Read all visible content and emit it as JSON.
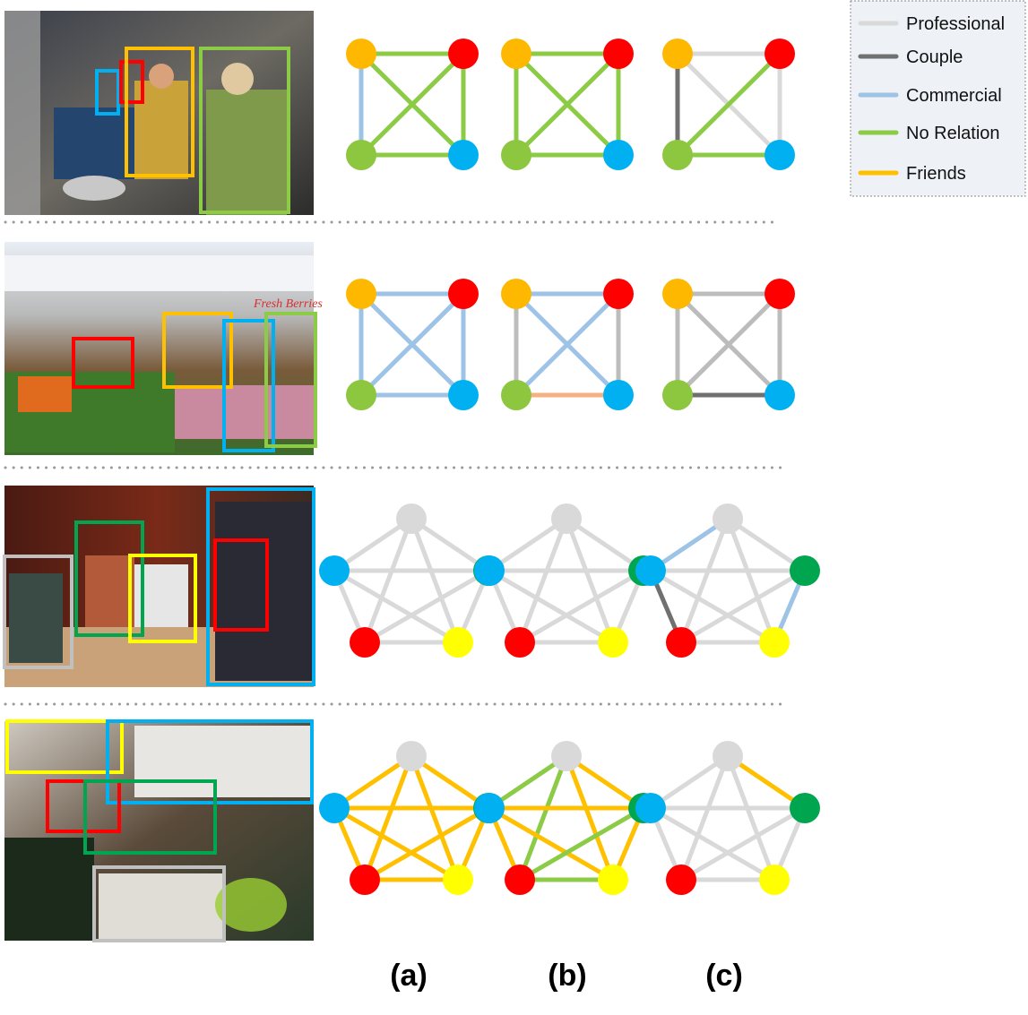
{
  "colors": {
    "professional": "#d9d9d9",
    "couple": "#707070",
    "commercial": "#9dc3e6",
    "no_relation": "#8ccb46",
    "friends": "#ffc000",
    "salmon": "#f4b183",
    "gray_mid": "#bcbcbc",
    "node_orange": "#ffb800",
    "node_red": "#ff0000",
    "node_lightgreen": "#8dc63f",
    "node_blue": "#00b0f0",
    "node_gray": "#d9d9d9",
    "node_green": "#00a64f",
    "node_yellow": "#ffff00"
  },
  "legend": {
    "items": [
      {
        "label": "Professional",
        "color": "#d9d9d9"
      },
      {
        "label": "Couple",
        "color": "#707070"
      },
      {
        "label": "Commercial",
        "color": "#9dc3e6"
      },
      {
        "label": "No Relation",
        "color": "#8ccb46"
      },
      {
        "label": "Friends",
        "color": "#ffc000"
      }
    ]
  },
  "column_labels": [
    "(a)",
    "(b)",
    "(c)"
  ],
  "photos": [
    {
      "name": "row1",
      "text": ""
    },
    {
      "name": "row2",
      "text": "Fresh Berries"
    },
    {
      "name": "row3",
      "text": ""
    },
    {
      "name": "row4",
      "text": ""
    }
  ],
  "rows": [
    {
      "nodes": [
        "orange",
        "red",
        "lightgreen",
        "blue"
      ],
      "graphs": [
        [
          [
            "tl",
            "tr",
            "no_relation"
          ],
          [
            "tl",
            "bl",
            "commercial"
          ],
          [
            "tl",
            "br",
            "no_relation"
          ],
          [
            "tr",
            "bl",
            "no_relation"
          ],
          [
            "tr",
            "br",
            "no_relation"
          ],
          [
            "bl",
            "br",
            "no_relation"
          ]
        ],
        [
          [
            "tl",
            "tr",
            "no_relation"
          ],
          [
            "tl",
            "bl",
            "no_relation"
          ],
          [
            "tl",
            "br",
            "no_relation"
          ],
          [
            "tr",
            "bl",
            "no_relation"
          ],
          [
            "tr",
            "br",
            "no_relation"
          ],
          [
            "bl",
            "br",
            "no_relation"
          ]
        ],
        [
          [
            "tl",
            "tr",
            "professional"
          ],
          [
            "tl",
            "bl",
            "couple"
          ],
          [
            "tl",
            "br",
            "professional"
          ],
          [
            "tr",
            "bl",
            "no_relation"
          ],
          [
            "tr",
            "br",
            "professional"
          ],
          [
            "bl",
            "br",
            "no_relation"
          ]
        ]
      ]
    },
    {
      "nodes": [
        "orange",
        "red",
        "lightgreen",
        "blue"
      ],
      "graphs": [
        [
          [
            "tl",
            "tr",
            "commercial"
          ],
          [
            "tl",
            "bl",
            "commercial"
          ],
          [
            "tl",
            "br",
            "commercial"
          ],
          [
            "tr",
            "bl",
            "commercial"
          ],
          [
            "tr",
            "br",
            "commercial"
          ],
          [
            "bl",
            "br",
            "commercial"
          ]
        ],
        [
          [
            "tl",
            "tr",
            "commercial"
          ],
          [
            "tl",
            "bl",
            "gray_mid"
          ],
          [
            "tl",
            "br",
            "commercial"
          ],
          [
            "tr",
            "bl",
            "commercial"
          ],
          [
            "tr",
            "br",
            "gray_mid"
          ],
          [
            "bl",
            "br",
            "salmon"
          ]
        ],
        [
          [
            "tl",
            "tr",
            "gray_mid"
          ],
          [
            "tl",
            "bl",
            "gray_mid"
          ],
          [
            "tl",
            "br",
            "gray_mid"
          ],
          [
            "tr",
            "bl",
            "gray_mid"
          ],
          [
            "tr",
            "br",
            "gray_mid"
          ],
          [
            "bl",
            "br",
            "couple"
          ]
        ]
      ]
    },
    {
      "nodes": [
        "gray",
        "blue",
        "green",
        "red",
        "yellow"
      ],
      "graphs": [
        [
          [
            "t",
            "l",
            "professional"
          ],
          [
            "t",
            "r",
            "professional"
          ],
          [
            "t",
            "bl",
            "professional"
          ],
          [
            "t",
            "br",
            "professional"
          ],
          [
            "l",
            "r",
            "professional"
          ],
          [
            "l",
            "bl",
            "professional"
          ],
          [
            "l",
            "br",
            "professional"
          ],
          [
            "r",
            "bl",
            "professional"
          ],
          [
            "r",
            "br",
            "professional"
          ],
          [
            "bl",
            "br",
            "professional"
          ]
        ],
        [
          [
            "t",
            "l",
            "professional"
          ],
          [
            "t",
            "r",
            "professional"
          ],
          [
            "t",
            "bl",
            "professional"
          ],
          [
            "t",
            "br",
            "professional"
          ],
          [
            "l",
            "r",
            "professional"
          ],
          [
            "l",
            "bl",
            "professional"
          ],
          [
            "l",
            "br",
            "professional"
          ],
          [
            "r",
            "bl",
            "professional"
          ],
          [
            "r",
            "br",
            "professional"
          ],
          [
            "bl",
            "br",
            "professional"
          ]
        ],
        [
          [
            "t",
            "l",
            "commercial"
          ],
          [
            "t",
            "r",
            "professional"
          ],
          [
            "t",
            "bl",
            "professional"
          ],
          [
            "t",
            "br",
            "professional"
          ],
          [
            "l",
            "r",
            "professional"
          ],
          [
            "l",
            "bl",
            "couple"
          ],
          [
            "l",
            "br",
            "professional"
          ],
          [
            "r",
            "bl",
            "professional"
          ],
          [
            "r",
            "br",
            "commercial"
          ],
          [
            "bl",
            "br",
            "professional"
          ]
        ]
      ]
    },
    {
      "nodes": [
        "gray",
        "blue",
        "green",
        "red",
        "yellow"
      ],
      "graphs": [
        [
          [
            "t",
            "l",
            "friends"
          ],
          [
            "t",
            "r",
            "friends"
          ],
          [
            "t",
            "bl",
            "friends"
          ],
          [
            "t",
            "br",
            "friends"
          ],
          [
            "l",
            "r",
            "friends"
          ],
          [
            "l",
            "bl",
            "friends"
          ],
          [
            "l",
            "br",
            "friends"
          ],
          [
            "r",
            "bl",
            "friends"
          ],
          [
            "r",
            "br",
            "friends"
          ],
          [
            "bl",
            "br",
            "friends"
          ]
        ],
        [
          [
            "t",
            "l",
            "no_relation"
          ],
          [
            "t",
            "r",
            "friends"
          ],
          [
            "t",
            "bl",
            "no_relation"
          ],
          [
            "t",
            "br",
            "friends"
          ],
          [
            "l",
            "r",
            "friends"
          ],
          [
            "l",
            "bl",
            "friends"
          ],
          [
            "l",
            "br",
            "friends"
          ],
          [
            "r",
            "bl",
            "no_relation"
          ],
          [
            "r",
            "br",
            "friends"
          ],
          [
            "bl",
            "br",
            "no_relation"
          ]
        ],
        [
          [
            "t",
            "l",
            "professional"
          ],
          [
            "t",
            "r",
            "friends"
          ],
          [
            "t",
            "bl",
            "professional"
          ],
          [
            "t",
            "br",
            "professional"
          ],
          [
            "l",
            "r",
            "professional"
          ],
          [
            "l",
            "bl",
            "professional"
          ],
          [
            "l",
            "br",
            "professional"
          ],
          [
            "r",
            "bl",
            "professional"
          ],
          [
            "r",
            "br",
            "professional"
          ],
          [
            "bl",
            "br",
            "professional"
          ]
        ]
      ]
    }
  ]
}
